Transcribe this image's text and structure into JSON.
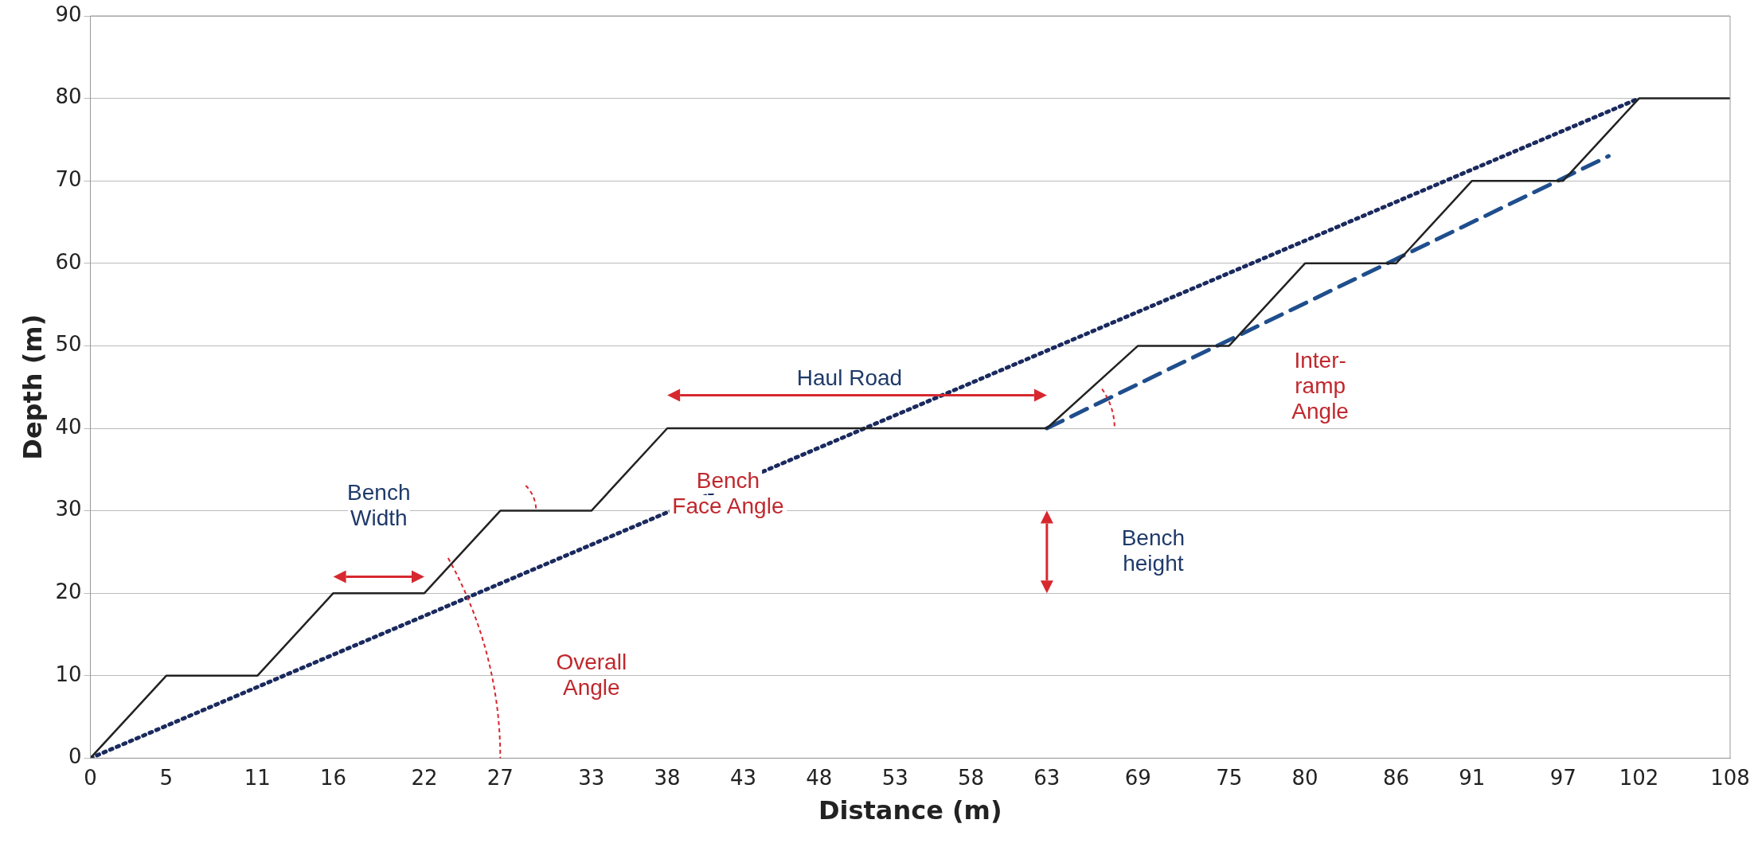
{
  "chart_data": {
    "type": "line",
    "xlabel": "Distance (m)",
    "ylabel": "Depth (m)",
    "xlim": [
      0,
      108
    ],
    "xticks": [
      0,
      5,
      11,
      16,
      22,
      27,
      33,
      38,
      43,
      48,
      53,
      58,
      63,
      69,
      75,
      80,
      86,
      91,
      97,
      102,
      108
    ],
    "ylim": [
      0,
      90
    ],
    "yticks": [
      0,
      10,
      20,
      30,
      40,
      50,
      60,
      70,
      80,
      90
    ],
    "grid": "y",
    "legend": false,
    "marker": "none",
    "series": [
      {
        "color": "#222222",
        "line_style": "solid",
        "x": [
          0,
          5,
          11,
          16,
          22,
          27,
          33,
          38,
          63,
          69,
          75,
          80,
          86,
          91,
          97,
          102,
          108
        ],
        "values": [
          0,
          10,
          10,
          20,
          20,
          30,
          30,
          40,
          40,
          50,
          50,
          60,
          60,
          70,
          70,
          80,
          80
        ]
      },
      {
        "color": "#1a2a5e",
        "line_style": "dotted",
        "x": [
          0,
          102
        ],
        "values": [
          0,
          80
        ]
      },
      {
        "color": "#1f4e8c",
        "line_style": "dashed",
        "x": [
          63,
          100
        ],
        "values": [
          40,
          73
        ]
      }
    ],
    "annotations": [
      "Haul Road",
      "Bench\nWidth",
      "Bench\nFace Angle",
      "Overall\nAngle",
      "Inter-\nramp\nAngle",
      "Bench\nheight"
    ]
  }
}
